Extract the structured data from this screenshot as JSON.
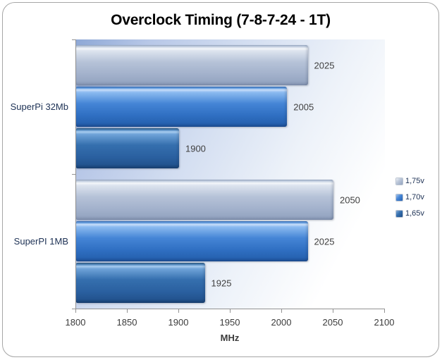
{
  "title": "Overclock Timing (7-8-7-24 - 1T)",
  "chart_data": {
    "type": "bar",
    "orientation": "horizontal",
    "title": "Overclock Timing (7-8-7-24 - 1T)",
    "categories": [
      "SuperPi 32Mb",
      "SuperPI 1MB"
    ],
    "series": [
      {
        "name": "1,75v",
        "color_key": "s175",
        "values": [
          2025,
          2050
        ]
      },
      {
        "name": "1,70v",
        "color_key": "s170",
        "values": [
          2005,
          2025
        ]
      },
      {
        "name": "1,65v",
        "color_key": "s165",
        "values": [
          1900,
          1925
        ]
      }
    ],
    "xlabel": "MHz",
    "xlim": [
      1800,
      2100
    ],
    "xticks": [
      1800,
      1850,
      1900,
      1950,
      2000,
      2050,
      2100
    ],
    "legend_position": "right",
    "data_labels": true,
    "grid": false
  },
  "colors": {
    "series_175": "#aebdd5",
    "series_170": "#3a79cf",
    "series_165": "#2e66a5",
    "plot_bg_start": "#8ea8d6",
    "plot_bg_end": "#ffffff",
    "frame_border": "#a6a6a6",
    "axis_line": "#929292",
    "value_label_text": "#404040",
    "axis_text": "#3b3b3b",
    "category_text": "#203457",
    "legend_text": "#203457",
    "title_text": "#000000"
  }
}
